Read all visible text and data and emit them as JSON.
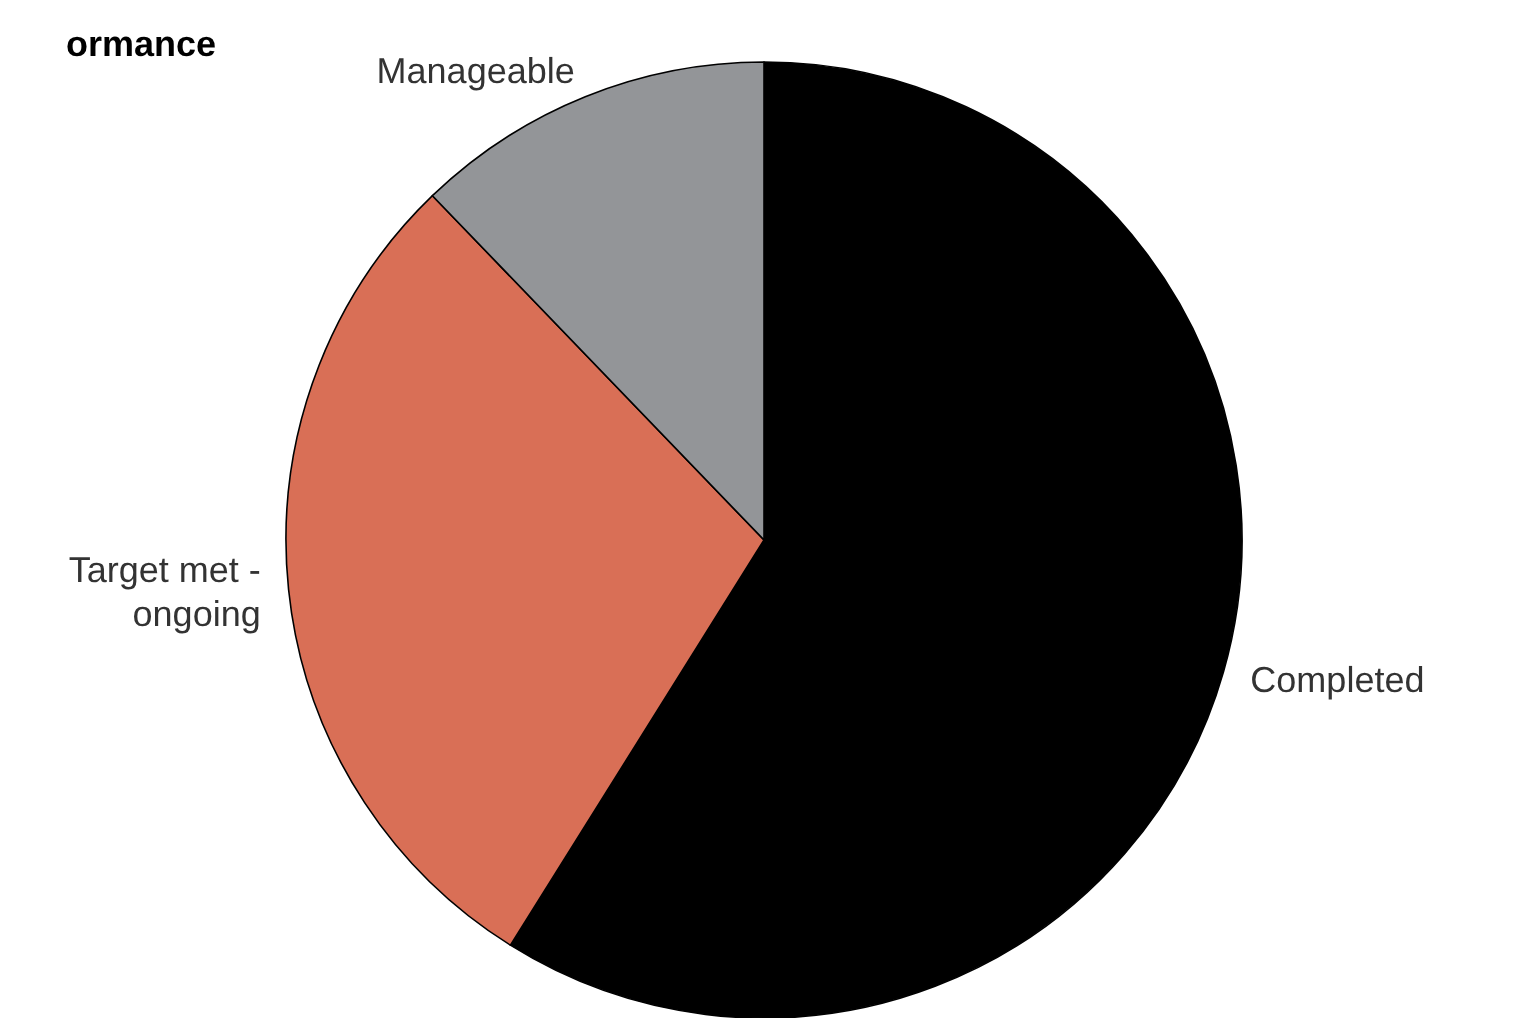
{
  "chart_data": {
    "type": "pie",
    "title": "ormance",
    "categories": [
      "Completed",
      "Target met - ongoing",
      "Manageable"
    ],
    "values": [
      58.9,
      28.9,
      12.2
    ],
    "colors": [
      "#000000",
      "#d96f56",
      "#939598"
    ],
    "legend": false
  }
}
